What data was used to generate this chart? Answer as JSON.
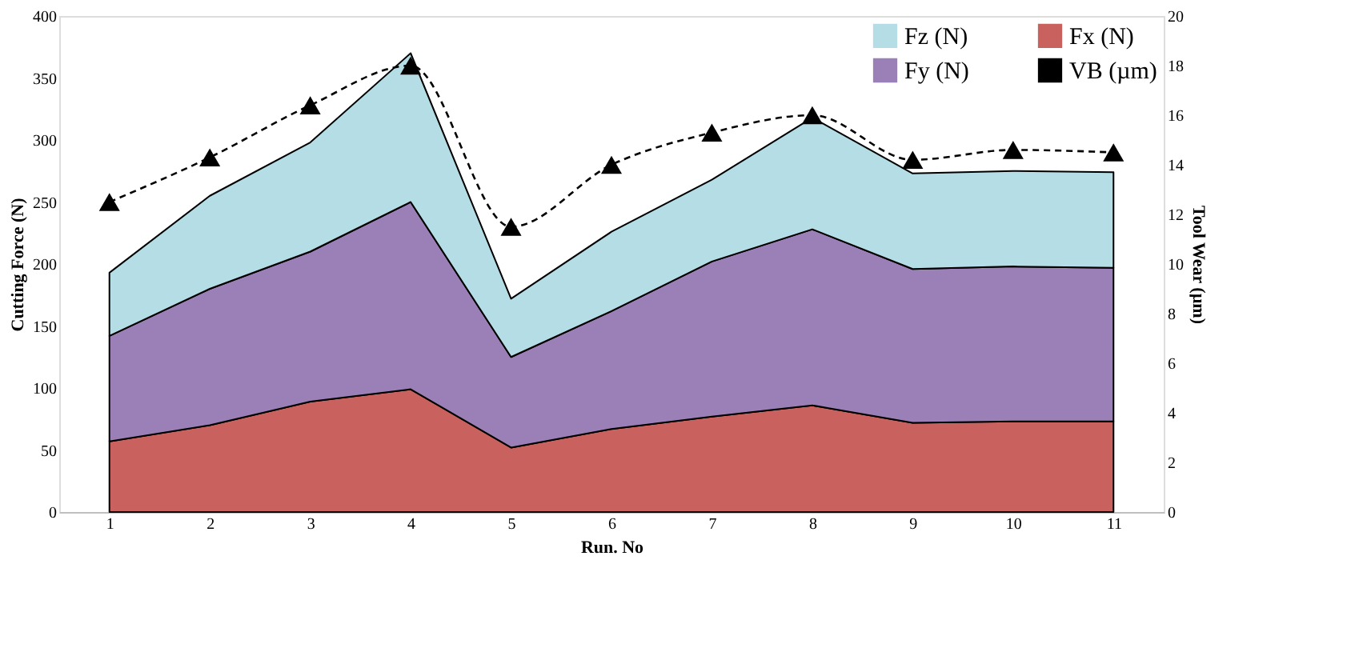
{
  "chart_data": {
    "type": "area",
    "xlabel": "Run. No",
    "ylabel": "Cutting Force (N)",
    "y2label": "Tool Wear (µm)",
    "categories": [
      "1",
      "2",
      "3",
      "4",
      "5",
      "6",
      "7",
      "8",
      "9",
      "10",
      "11"
    ],
    "stacked": true,
    "grid": false,
    "legend": "top right",
    "ylim": [
      0,
      400
    ],
    "yticks": [
      0,
      50,
      100,
      150,
      200,
      250,
      300,
      350,
      400
    ],
    "y2lim": [
      0,
      20
    ],
    "y2ticks": [
      0,
      2,
      4,
      6,
      8,
      10,
      12,
      14,
      16,
      18,
      20
    ],
    "series": [
      {
        "name": "Fx (N)",
        "color": "#c9625f",
        "values": [
          57,
          70,
          89,
          99,
          52,
          67,
          77,
          86,
          72,
          73,
          73
        ]
      },
      {
        "name": "Fy (N)",
        "color": "#9b80b8",
        "values": [
          85,
          110,
          121,
          151,
          73,
          95,
          125,
          142,
          124,
          125,
          124
        ]
      },
      {
        "name": "Fz (N)",
        "color": "#b4dde6",
        "values": [
          51,
          75,
          88,
          120,
          47,
          64,
          66,
          90,
          77,
          77,
          77
        ]
      },
      {
        "name": "VB (µm)",
        "color": "#000000",
        "type": "line",
        "axis": "y2",
        "marker": "triangle",
        "line_style": "dashed",
        "values": [
          12.5,
          14.3,
          16.4,
          18.0,
          11.5,
          14.0,
          15.3,
          16.0,
          14.2,
          14.6,
          14.5
        ]
      }
    ]
  }
}
